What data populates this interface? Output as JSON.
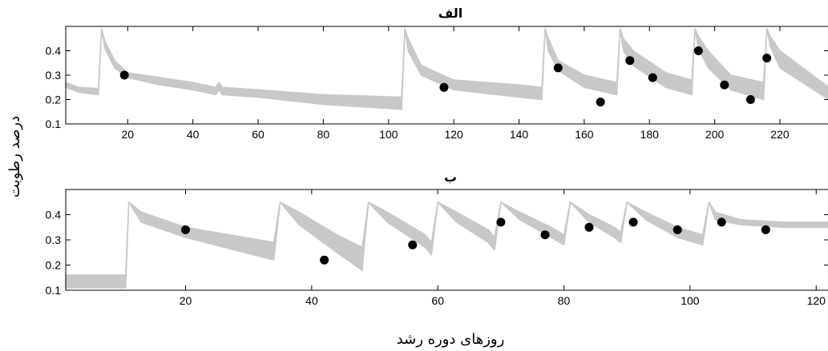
{
  "figure": {
    "ylabel": "درصد رطوبت",
    "xlabel": "روزهای دوره رشد"
  },
  "chart_data": [
    {
      "type": "area",
      "title": "الف",
      "xlim": [
        1,
        235
      ],
      "ylim": [
        0.1,
        0.5
      ],
      "xticks": [
        20,
        40,
        60,
        80,
        100,
        120,
        140,
        160,
        180,
        200,
        220
      ],
      "yticks": [
        0.1,
        0.2,
        0.3,
        0.4
      ],
      "grid": false,
      "band_color": "#c8c8c8",
      "point_color": "#000000",
      "band": {
        "x": [
          1,
          5,
          11,
          12,
          13,
          16,
          20,
          30,
          40,
          47,
          48,
          49,
          60,
          80,
          104,
          105,
          106,
          110,
          120,
          140,
          147,
          148,
          149,
          152,
          160,
          170,
          171,
          172,
          175,
          185,
          193,
          194,
          195,
          198,
          205,
          215,
          216,
          217,
          220,
          235
        ],
        "upper": [
          0.27,
          0.25,
          0.245,
          0.49,
          0.44,
          0.36,
          0.31,
          0.29,
          0.27,
          0.25,
          0.27,
          0.25,
          0.24,
          0.22,
          0.21,
          0.49,
          0.45,
          0.34,
          0.28,
          0.26,
          0.25,
          0.49,
          0.45,
          0.36,
          0.3,
          0.27,
          0.49,
          0.45,
          0.4,
          0.31,
          0.28,
          0.49,
          0.46,
          0.4,
          0.3,
          0.27,
          0.49,
          0.46,
          0.4,
          0.25
        ],
        "lower": [
          0.25,
          0.23,
          0.22,
          0.49,
          0.41,
          0.33,
          0.29,
          0.26,
          0.24,
          0.22,
          0.24,
          0.22,
          0.21,
          0.18,
          0.16,
          0.49,
          0.4,
          0.3,
          0.24,
          0.21,
          0.2,
          0.49,
          0.4,
          0.32,
          0.25,
          0.22,
          0.49,
          0.4,
          0.34,
          0.25,
          0.22,
          0.49,
          0.41,
          0.33,
          0.24,
          0.2,
          0.49,
          0.42,
          0.33,
          0.2
        ]
      },
      "points": {
        "x": [
          19,
          117,
          152,
          165,
          174,
          181,
          195,
          203,
          211,
          216
        ],
        "y": [
          0.3,
          0.25,
          0.33,
          0.19,
          0.36,
          0.29,
          0.4,
          0.26,
          0.2,
          0.37
        ]
      }
    },
    {
      "type": "area",
      "title": "ب",
      "xlim": [
        1,
        122
      ],
      "ylim": [
        0.1,
        0.5
      ],
      "xticks": [
        20,
        40,
        60,
        80,
        100,
        120
      ],
      "yticks": [
        0.1,
        0.2,
        0.3,
        0.4
      ],
      "grid": false,
      "band_color": "#c8c8c8",
      "point_color": "#000000",
      "band": {
        "x": [
          1,
          10,
          10.5,
          11,
          13,
          20,
          34,
          35,
          38,
          44,
          48,
          49,
          52,
          58,
          59,
          60,
          63,
          68,
          69,
          70,
          73,
          78,
          80,
          81,
          84,
          88,
          89,
          90,
          93,
          98,
          102,
          103,
          104,
          108,
          115,
          122
        ],
        "upper": [
          0.16,
          0.16,
          0.16,
          0.45,
          0.41,
          0.35,
          0.29,
          0.45,
          0.41,
          0.32,
          0.27,
          0.45,
          0.41,
          0.32,
          0.29,
          0.45,
          0.41,
          0.34,
          0.31,
          0.45,
          0.41,
          0.35,
          0.32,
          0.45,
          0.4,
          0.35,
          0.33,
          0.45,
          0.41,
          0.35,
          0.32,
          0.45,
          0.41,
          0.38,
          0.37,
          0.37
        ],
        "lower": [
          0.11,
          0.11,
          0.11,
          0.45,
          0.37,
          0.31,
          0.22,
          0.45,
          0.36,
          0.25,
          0.18,
          0.45,
          0.37,
          0.27,
          0.24,
          0.45,
          0.37,
          0.29,
          0.26,
          0.45,
          0.38,
          0.31,
          0.28,
          0.45,
          0.37,
          0.31,
          0.29,
          0.45,
          0.38,
          0.31,
          0.28,
          0.45,
          0.38,
          0.36,
          0.35,
          0.35
        ]
      },
      "points": {
        "x": [
          20,
          42,
          56,
          70,
          77,
          84,
          91,
          98,
          105,
          112
        ],
        "y": [
          0.34,
          0.22,
          0.28,
          0.37,
          0.32,
          0.35,
          0.37,
          0.34,
          0.37,
          0.34
        ]
      }
    }
  ]
}
